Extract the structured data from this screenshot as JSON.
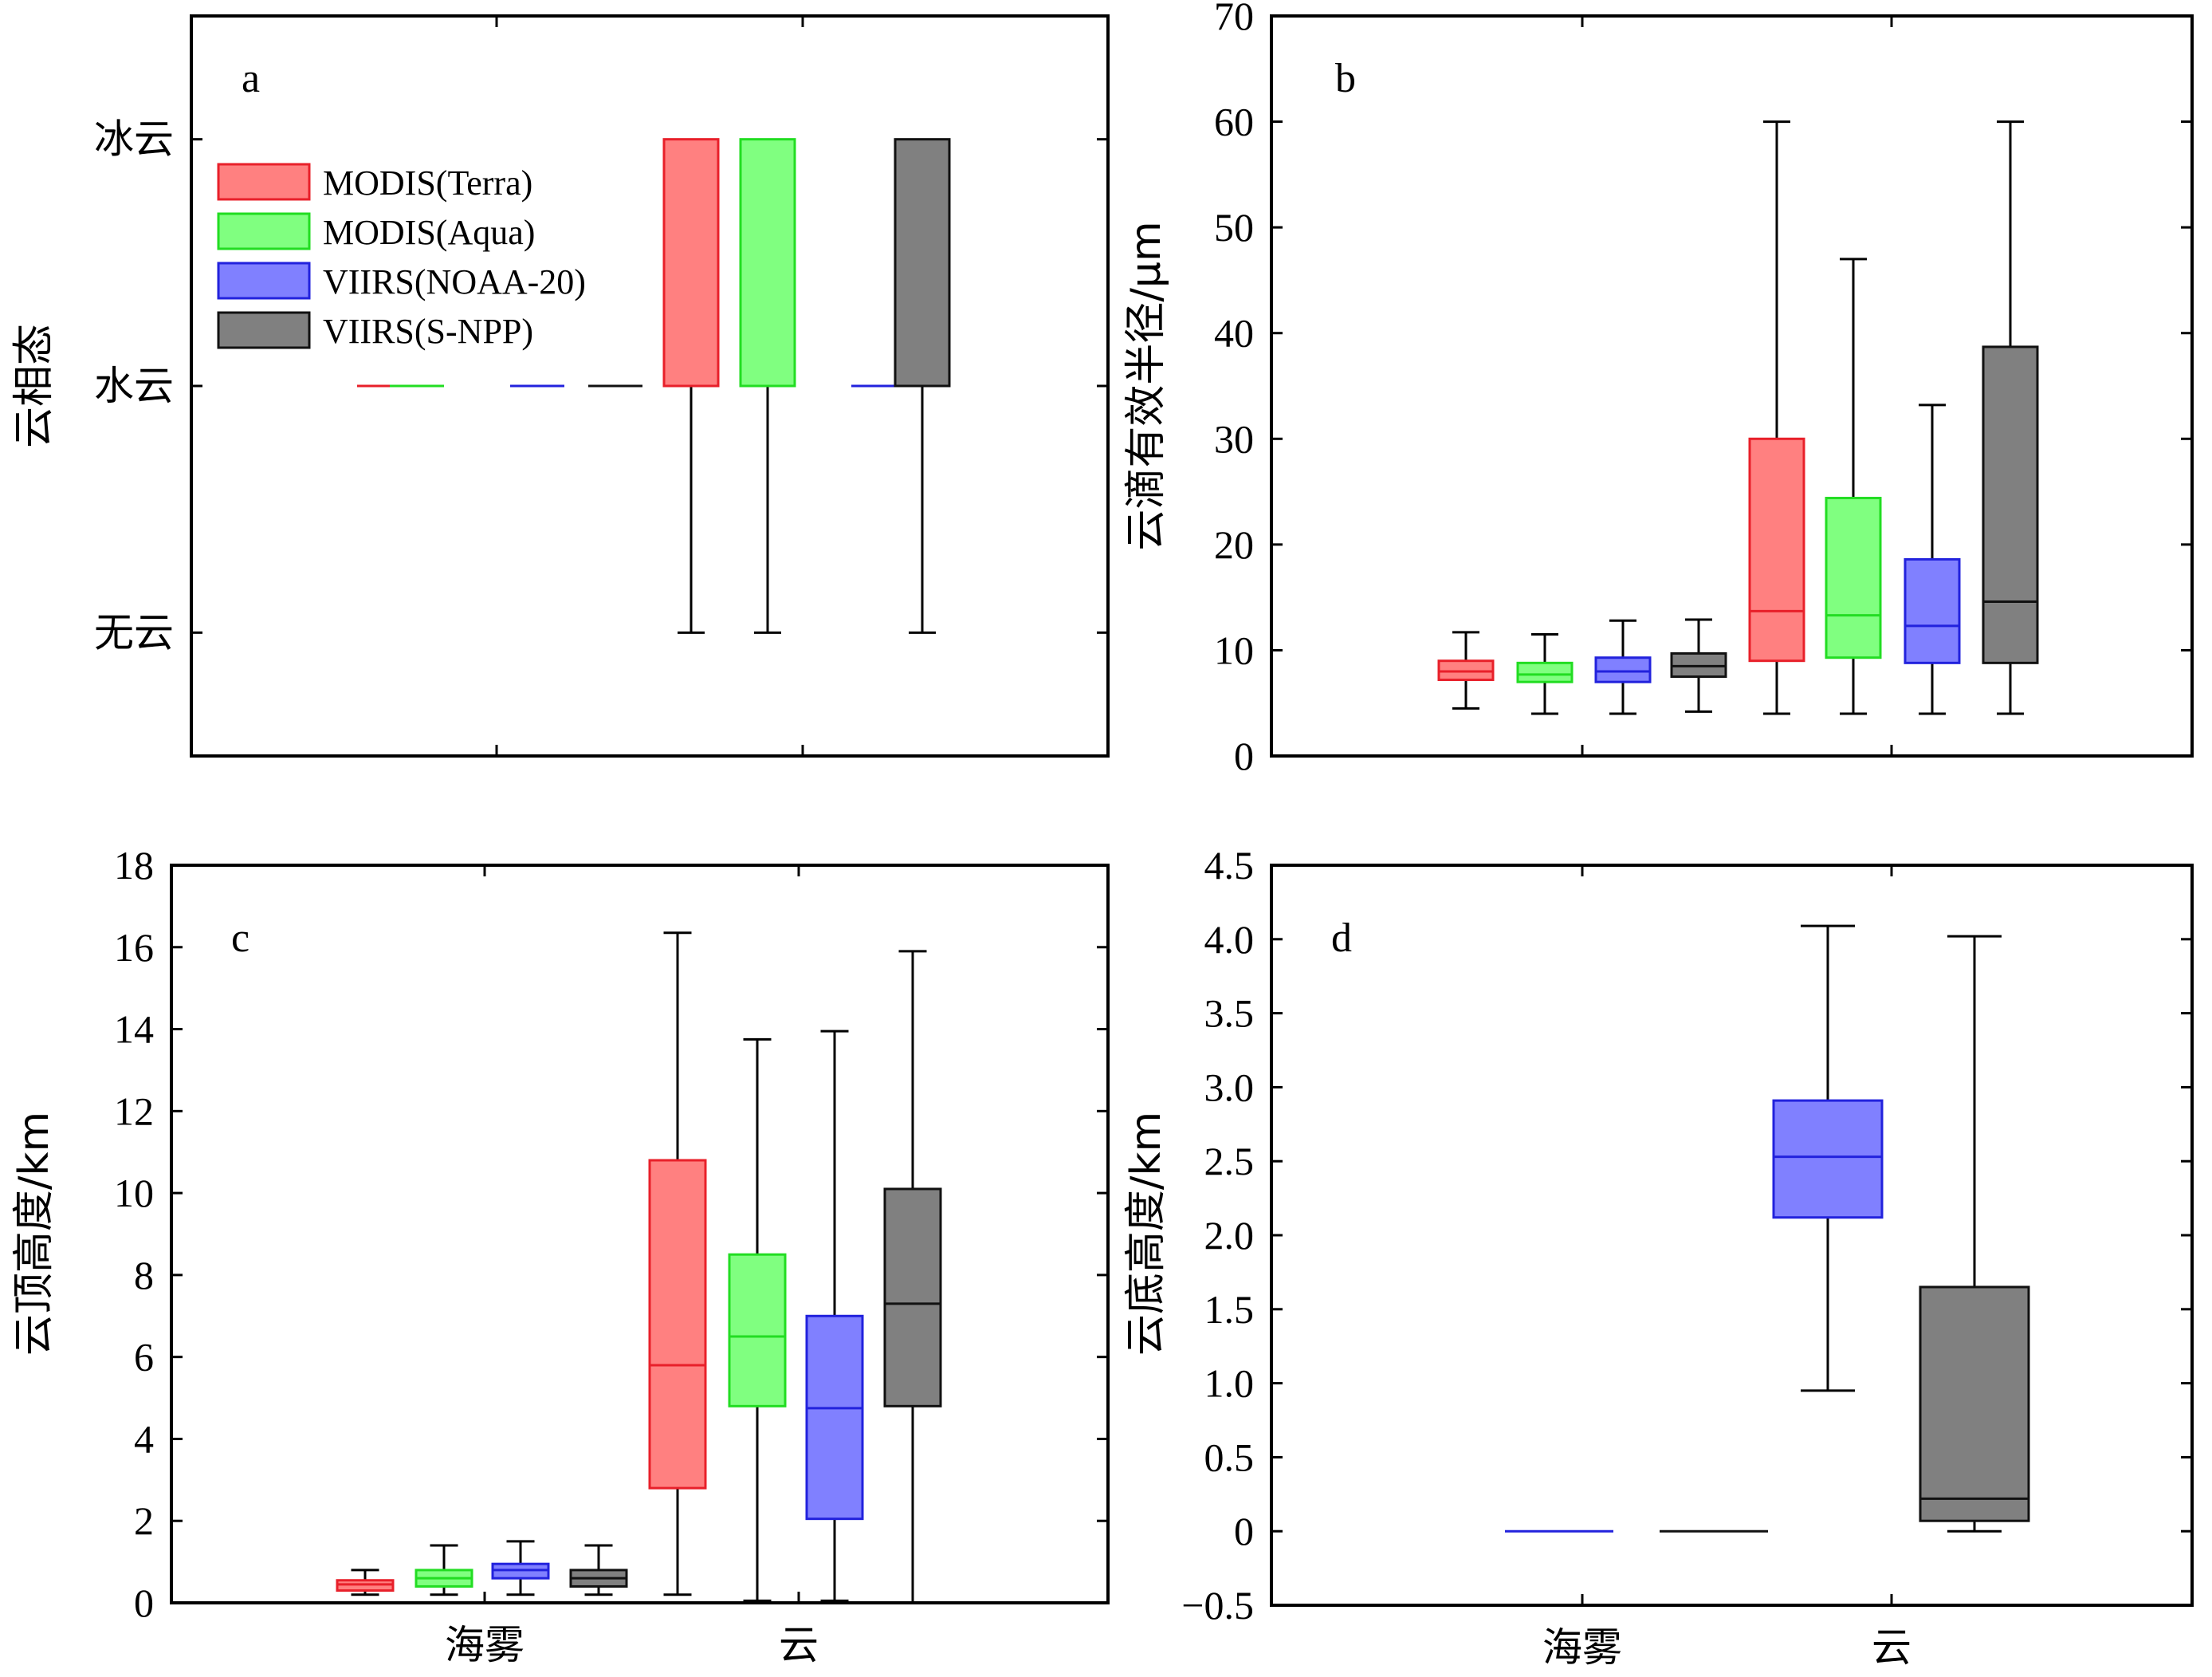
{
  "chart_data": [
    {
      "panel_label": "a",
      "type": "box",
      "ylabel": "云相态",
      "yticks": [
        {
          "value": 0,
          "label": "无云"
        },
        {
          "value": 1,
          "label": "水云"
        },
        {
          "value": 2,
          "label": "冰云"
        }
      ],
      "ylim": [
        -0.5,
        2.5
      ],
      "legend_position": "top-left",
      "legend": [
        {
          "name": "MODIS(Terra)",
          "color": "#ff8080",
          "edge": "#e8202a"
        },
        {
          "name": "MODIS(Aqua)",
          "color": "#80ff80",
          "edge": "#22dd22"
        },
        {
          "name": "VIIRS(NOAA-20)",
          "color": "#8080ff",
          "edge": "#2222dd"
        },
        {
          "name": "VIIRS(S-NPP)",
          "color": "#808080",
          "edge": "#111111"
        }
      ],
      "groups": [
        {
          "category": "海雾",
          "boxes": [
            {
              "series": 0,
              "min": 1,
              "q1": 1,
              "median": 1,
              "q3": 1,
              "max": 1
            },
            {
              "series": 1,
              "min": 1,
              "q1": 1,
              "median": 1,
              "q3": 1,
              "max": 1
            },
            {
              "series": 2,
              "min": 1,
              "q1": 1,
              "median": 1,
              "q3": 1,
              "max": 1
            },
            {
              "series": 3,
              "min": 1,
              "q1": 1,
              "median": 1,
              "q3": 1,
              "max": 1
            }
          ]
        },
        {
          "category": "云",
          "boxes": [
            {
              "series": 0,
              "min": 0,
              "q1": 1,
              "median": 1,
              "q3": 2,
              "max": 2
            },
            {
              "series": 1,
              "min": 0,
              "q1": 1,
              "median": 1,
              "q3": 2,
              "max": 2
            },
            {
              "series": 2,
              "min": 1,
              "q1": 1,
              "median": 1,
              "q3": 1,
              "max": 1
            },
            {
              "series": 3,
              "min": 0,
              "q1": 1,
              "median": 1,
              "q3": 2,
              "max": 2
            }
          ]
        }
      ]
    },
    {
      "panel_label": "b",
      "type": "box",
      "ylabel": "云滴有效半径/μm",
      "yticks": [
        {
          "value": 0,
          "label": "0"
        },
        {
          "value": 10,
          "label": "10"
        },
        {
          "value": 20,
          "label": "20"
        },
        {
          "value": 30,
          "label": "30"
        },
        {
          "value": 40,
          "label": "40"
        },
        {
          "value": 50,
          "label": "50"
        },
        {
          "value": 60,
          "label": "60"
        },
        {
          "value": 70,
          "label": "70"
        }
      ],
      "ylim": [
        0,
        70
      ],
      "groups": [
        {
          "category": "海雾",
          "boxes": [
            {
              "series": 0,
              "min": 4.5,
              "q1": 7.2,
              "median": 8.0,
              "q3": 9.0,
              "max": 11.7
            },
            {
              "series": 1,
              "min": 4.0,
              "q1": 7.0,
              "median": 7.7,
              "q3": 8.8,
              "max": 11.5
            },
            {
              "series": 2,
              "min": 4.0,
              "q1": 7.0,
              "median": 8.0,
              "q3": 9.3,
              "max": 12.8
            },
            {
              "series": 3,
              "min": 4.2,
              "q1": 7.5,
              "median": 8.5,
              "q3": 9.7,
              "max": 12.9
            }
          ]
        },
        {
          "category": "云",
          "boxes": [
            {
              "series": 0,
              "min": 4.0,
              "q1": 9.0,
              "median": 13.7,
              "q3": 30.0,
              "max": 60.0
            },
            {
              "series": 1,
              "min": 4.0,
              "q1": 9.3,
              "median": 13.3,
              "q3": 24.4,
              "max": 47.0
            },
            {
              "series": 2,
              "min": 4.0,
              "q1": 8.8,
              "median": 12.3,
              "q3": 18.6,
              "max": 33.2
            },
            {
              "series": 3,
              "min": 4.0,
              "q1": 8.8,
              "median": 14.6,
              "q3": 38.7,
              "max": 60.0
            }
          ]
        }
      ]
    },
    {
      "panel_label": "c",
      "type": "box",
      "ylabel": "云顶高度/km",
      "yticks": [
        {
          "value": 0,
          "label": "0"
        },
        {
          "value": 2,
          "label": "2"
        },
        {
          "value": 4,
          "label": "4"
        },
        {
          "value": 6,
          "label": "6"
        },
        {
          "value": 8,
          "label": "8"
        },
        {
          "value": 10,
          "label": "10"
        },
        {
          "value": 12,
          "label": "12"
        },
        {
          "value": 14,
          "label": "14"
        },
        {
          "value": 16,
          "label": "16"
        },
        {
          "value": 18,
          "label": "18"
        }
      ],
      "ylim": [
        0,
        18
      ],
      "groups": [
        {
          "category": "海雾",
          "boxes": [
            {
              "series": 0,
              "min": 0.2,
              "q1": 0.3,
              "median": 0.45,
              "q3": 0.55,
              "max": 0.8
            },
            {
              "series": 1,
              "min": 0.2,
              "q1": 0.4,
              "median": 0.6,
              "q3": 0.8,
              "max": 1.4
            },
            {
              "series": 2,
              "min": 0.2,
              "q1": 0.6,
              "median": 0.8,
              "q3": 0.95,
              "max": 1.5
            },
            {
              "series": 3,
              "min": 0.2,
              "q1": 0.4,
              "median": 0.6,
              "q3": 0.8,
              "max": 1.4
            }
          ]
        },
        {
          "category": "云",
          "boxes": [
            {
              "series": 0,
              "min": 0.2,
              "q1": 2.8,
              "median": 5.8,
              "q3": 10.8,
              "max": 16.35
            },
            {
              "series": 1,
              "min": 0.05,
              "q1": 4.8,
              "median": 6.5,
              "q3": 8.5,
              "max": 13.75
            },
            {
              "series": 2,
              "min": 0.05,
              "q1": 2.05,
              "median": 4.75,
              "q3": 7.0,
              "max": 13.95
            },
            {
              "series": 3,
              "min": 0.0,
              "q1": 4.8,
              "median": 7.3,
              "q3": 10.1,
              "max": 15.9
            }
          ]
        }
      ]
    },
    {
      "panel_label": "d",
      "type": "box",
      "ylabel": "云底高度/km",
      "yticks": [
        {
          "value": -0.5,
          "label": "−0.5"
        },
        {
          "value": 0,
          "label": "0"
        },
        {
          "value": 0.5,
          "label": "0.5"
        },
        {
          "value": 1.0,
          "label": "1.0"
        },
        {
          "value": 1.5,
          "label": "1.5"
        },
        {
          "value": 2.0,
          "label": "2.0"
        },
        {
          "value": 2.5,
          "label": "2.5"
        },
        {
          "value": 3.0,
          "label": "3.0"
        },
        {
          "value": 3.5,
          "label": "3.5"
        },
        {
          "value": 4.0,
          "label": "4.0"
        },
        {
          "value": 4.5,
          "label": "4.5"
        }
      ],
      "ylim": [
        -0.5,
        4.5
      ],
      "groups": [
        {
          "category": "海雾",
          "boxes": [
            {
              "series": 2,
              "min": 0,
              "q1": 0,
              "median": 0,
              "q3": 0,
              "max": 0
            },
            {
              "series": 3,
              "min": 0,
              "q1": 0,
              "median": 0,
              "q3": 0,
              "max": 0
            }
          ]
        },
        {
          "category": "云",
          "boxes": [
            {
              "series": 2,
              "min": 0.95,
              "q1": 2.12,
              "median": 2.53,
              "q3": 2.91,
              "max": 4.09
            },
            {
              "series": 3,
              "min": 0.0,
              "q1": 0.07,
              "median": 0.22,
              "q3": 1.65,
              "max": 4.02
            }
          ]
        }
      ]
    }
  ]
}
